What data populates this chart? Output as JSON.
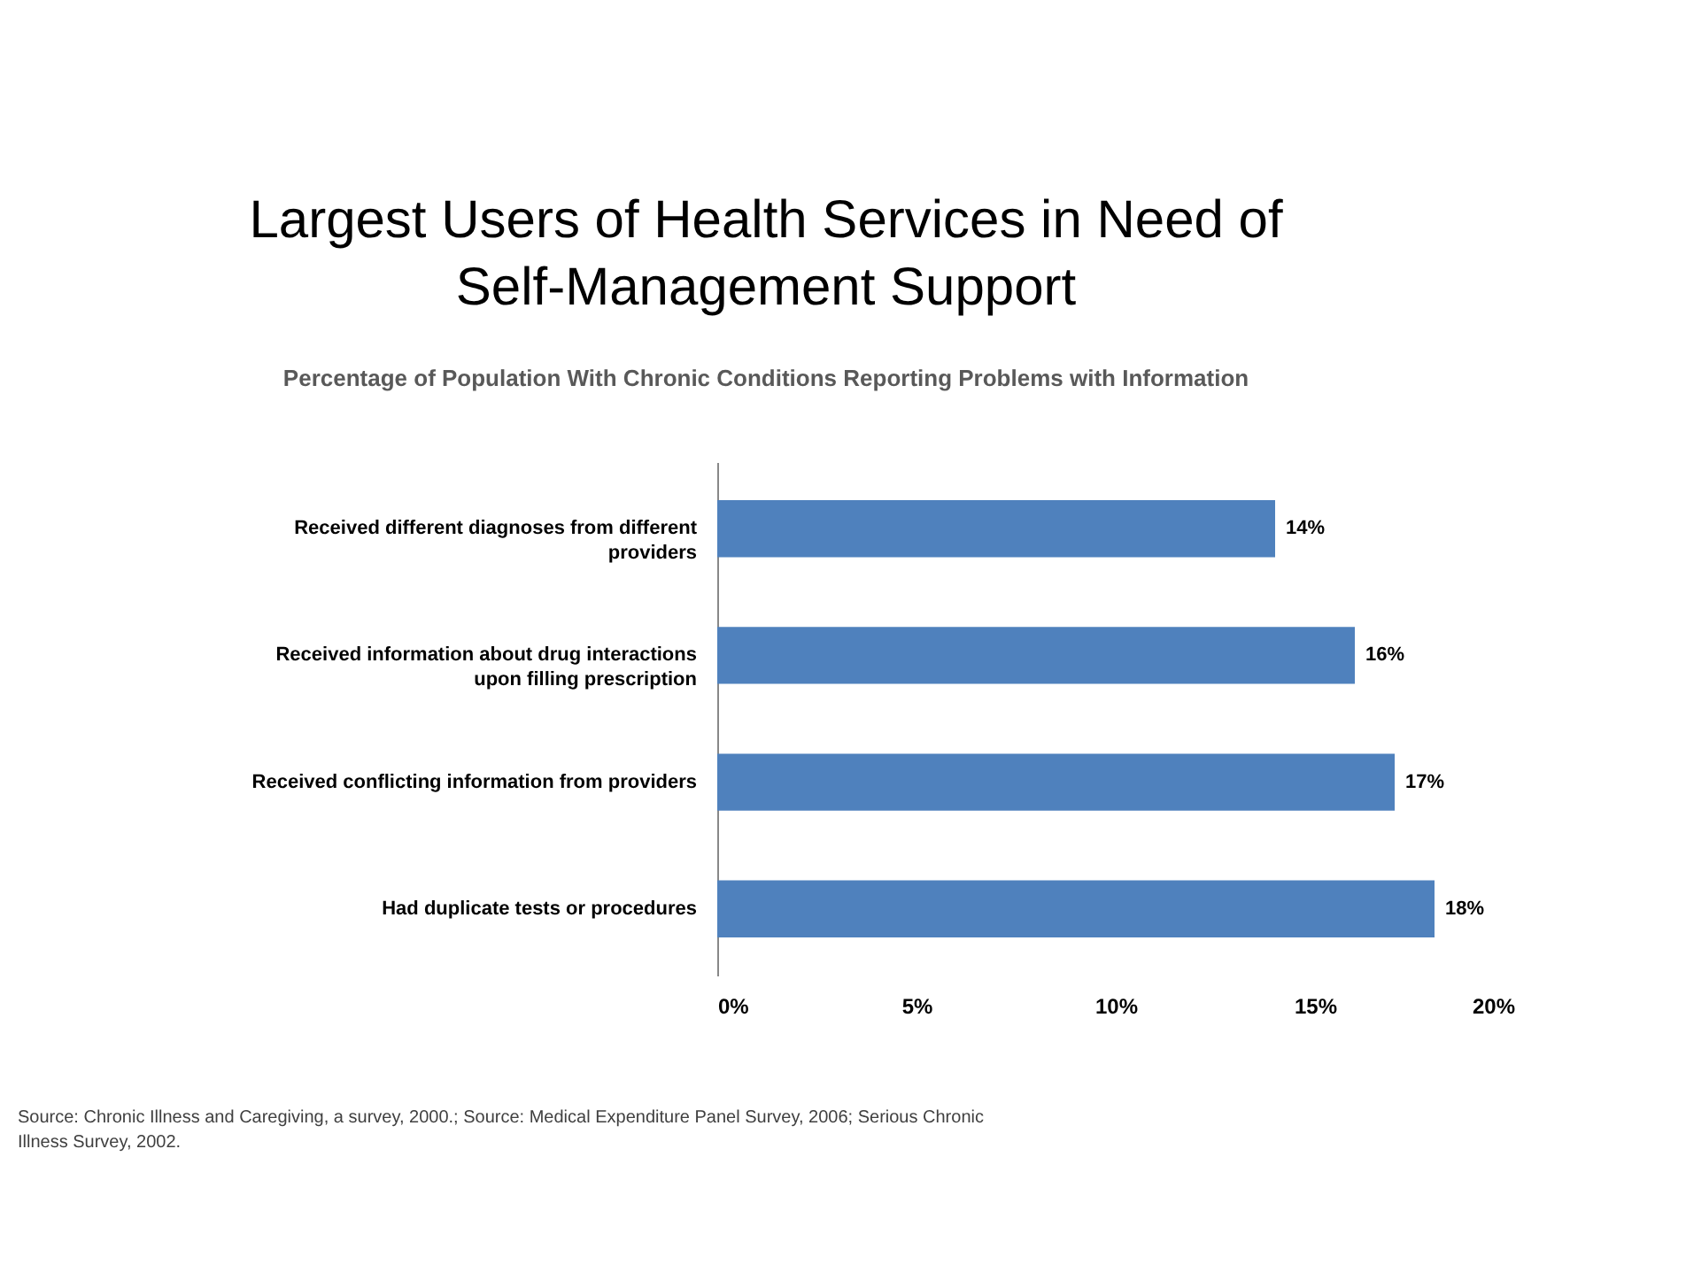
{
  "chart_data": {
    "type": "bar",
    "orientation": "horizontal",
    "title": "Largest Users of Health Services in Need of Self-Management Support",
    "subtitle": "Percentage of Population With Chronic Conditions Reporting Problems with Information",
    "categories": [
      "Received different diagnoses from different providers",
      "Received information about drug interactions upon filling prescription",
      "Received conflicting information from providers",
      "Had duplicate tests or procedures"
    ],
    "values": [
      14,
      16,
      17,
      18
    ],
    "value_labels": [
      "14%",
      "16%",
      "17%",
      "18%"
    ],
    "color": "#4f81bd",
    "xlim": [
      0,
      20
    ],
    "xticks": [
      {
        "value": 0,
        "label": "0%"
      },
      {
        "value": 5,
        "label": "5%"
      },
      {
        "value": 10,
        "label": "10%"
      },
      {
        "value": 15,
        "label": "15%"
      },
      {
        "value": 20,
        "label": "20%"
      }
    ],
    "grid": false,
    "annotations": [
      "Source: Chronic Illness and Caregiving, a survey, 2000.; Source: Medical Expenditure Panel Survey, 2006; Serious Chronic Illness Survey, 2002."
    ]
  }
}
